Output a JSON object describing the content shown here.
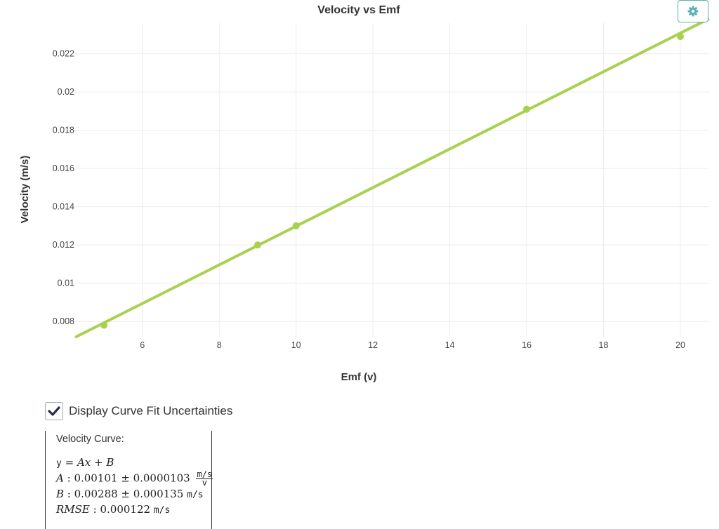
{
  "chart_data": {
    "type": "scatter",
    "title": "Velocity vs Emf",
    "xlabel": "Emf (v)",
    "ylabel": "Velocity (m/s)",
    "xlim": [
      4.25,
      20.75
    ],
    "ylim": [
      0.0072,
      0.0236
    ],
    "x_ticks": [
      6,
      8,
      10,
      12,
      14,
      16,
      18,
      20
    ],
    "y_ticks": [
      0.008,
      0.01,
      0.012,
      0.014,
      0.016,
      0.018,
      0.02,
      0.022
    ],
    "x_tick_labels": [
      "6",
      "8",
      "10",
      "12",
      "14",
      "16",
      "18",
      "20"
    ],
    "y_tick_labels": [
      "0.008",
      "0.01",
      "0.012",
      "0.014",
      "0.016",
      "0.018",
      "0.02",
      "0.022"
    ],
    "grid": true,
    "series": [
      {
        "points": [
          {
            "x": 5,
            "y": 0.0078
          },
          {
            "x": 9,
            "y": 0.012
          },
          {
            "x": 10,
            "y": 0.013
          },
          {
            "x": 16,
            "y": 0.0191
          },
          {
            "x": 20,
            "y": 0.0229
          }
        ]
      }
    ],
    "fit": {
      "A": 0.00101,
      "B": 0.00288
    },
    "colors": {
      "points": "#a8d14f",
      "fit_line": "#a8d14f",
      "grid": "#ececec"
    }
  },
  "settings": {
    "icon": "gear-icon",
    "color": "#5ab0b4"
  },
  "uncertainty_toggle": {
    "label": "Display Curve Fit Uncertainties",
    "checked": true
  },
  "fit_results": {
    "title": "Velocity Curve:",
    "equation_y": "y",
    "equation_rhs": "= Ax + B",
    "A_label": "A",
    "A_value": "0.00101",
    "A_uncertainty": "0.0000103",
    "A_unit_num": "m/s",
    "A_unit_den": "v",
    "B_label": "B",
    "B_value": "0.00288",
    "B_uncertainty": "0.000135",
    "B_unit": "m/s",
    "RMSE_label": "RMSE",
    "RMSE_value": "0.000122",
    "RMSE_unit": "m/s"
  }
}
